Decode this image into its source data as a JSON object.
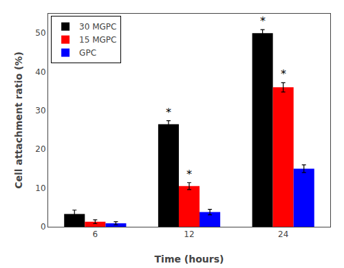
{
  "chart_data": {
    "type": "bar",
    "categories": [
      "6",
      "12",
      "24"
    ],
    "series": [
      {
        "name": "30 MGPC",
        "color": "#000000",
        "values": [
          3.3,
          26.5,
          50.0
        ],
        "errors": [
          1.0,
          0.9,
          0.9
        ]
      },
      {
        "name": "15 MGPC",
        "color": "#ff0000",
        "values": [
          1.3,
          10.5,
          36.0
        ],
        "errors": [
          0.5,
          0.9,
          1.2
        ]
      },
      {
        "name": "GPC",
        "color": "#0000ff",
        "values": [
          0.9,
          3.8,
          15.0
        ],
        "errors": [
          0.4,
          0.7,
          1.0
        ]
      }
    ],
    "annotations": [
      {
        "text": "*",
        "category": "12",
        "series": "30 MGPC"
      },
      {
        "text": "*",
        "category": "24",
        "series": "30 MGPC"
      },
      {
        "text": "*",
        "category": "12",
        "series": "15 MGPC"
      },
      {
        "text": "*",
        "category": "24",
        "series": "15 MGPC"
      }
    ],
    "xlabel": "Time (hours)",
    "ylabel": "Cell attachment ratio (%)",
    "ylim": [
      0,
      55
    ],
    "yticks": [
      0,
      10,
      20,
      30,
      40,
      50
    ],
    "grid": false,
    "legend": "upper left"
  }
}
